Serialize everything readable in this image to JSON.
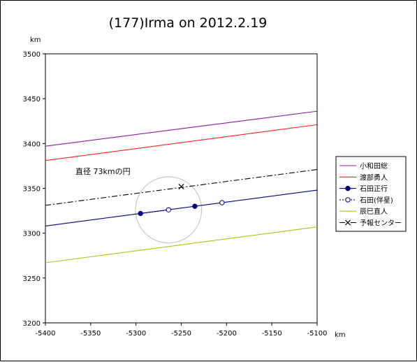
{
  "chart_data": {
    "type": "line",
    "title": "(177)Irma on 2012.2.19",
    "xlabel": "km",
    "ylabel": "km",
    "xlim": [
      -5400,
      -5100
    ],
    "ylim": [
      3200,
      3500
    ],
    "xticks": [
      "-5400",
      "-5350",
      "-5300",
      "-5250",
      "-5200",
      "-5150",
      "-5100"
    ],
    "yticks": [
      "3200",
      "3250",
      "3300",
      "3350",
      "3400",
      "3450",
      "3500"
    ],
    "grid": false,
    "legend_position": "right",
    "annotation": "直径 73kmの円",
    "circle": {
      "center": [
        -5264,
        3326
      ],
      "diameter": 73,
      "color": "#c8c8c8"
    },
    "series": [
      {
        "name": "小和田総",
        "color": "#8B1A9E",
        "style": "solid",
        "marker": "none",
        "x": [
          -5400,
          -5100
        ],
        "y": [
          3397,
          3436
        ]
      },
      {
        "name": "渡部勇人",
        "color": "#ff2020",
        "style": "solid",
        "marker": "none",
        "x": [
          -5400,
          -5100
        ],
        "y": [
          3381,
          3421
        ]
      },
      {
        "name": "石田正行",
        "color": "#000080",
        "style": "solid",
        "marker": "filled-circle",
        "x": [
          -5400,
          -5100
        ],
        "y": [
          3308,
          3348
        ],
        "points": [
          [
            -5295,
            3322
          ],
          [
            -5235,
            3330
          ]
        ]
      },
      {
        "name": "石田(伴星)",
        "color": "#000080",
        "style": "dotted",
        "marker": "open-circle",
        "x": [
          -5295,
          -5264
        ],
        "y": [
          3322,
          3326
        ],
        "points": [
          [
            -5264,
            3326
          ],
          [
            -5205,
            3334
          ]
        ]
      },
      {
        "name": "辰巳直人",
        "color": "#a6c61a",
        "style": "solid",
        "marker": "none",
        "x": [
          -5400,
          -5100
        ],
        "y": [
          3267,
          3307
        ]
      },
      {
        "name": "予報センター",
        "color": "#000000",
        "style": "dashdot",
        "marker": "x",
        "x": [
          -5400,
          -5100
        ],
        "y": [
          3331,
          3371
        ],
        "points": [
          [
            -5250,
            3352
          ]
        ]
      }
    ]
  }
}
